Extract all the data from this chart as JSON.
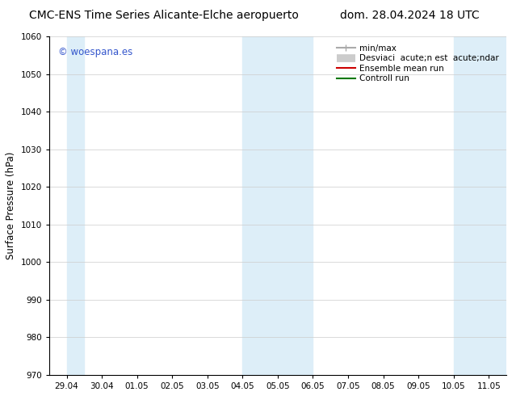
{
  "title_left": "CMC-ENS Time Series Alicante-Elche aeropuerto",
  "title_right": "dom. 28.04.2024 18 UTC",
  "ylabel": "Surface Pressure (hPa)",
  "ylim": [
    970,
    1060
  ],
  "yticks": [
    970,
    980,
    990,
    1000,
    1010,
    1020,
    1030,
    1040,
    1050,
    1060
  ],
  "xtick_labels": [
    "29.04",
    "30.04",
    "01.05",
    "02.05",
    "03.05",
    "04.05",
    "05.05",
    "06.05",
    "07.05",
    "08.05",
    "09.05",
    "10.05",
    "11.05"
  ],
  "num_xticks": 13,
  "shaded_bands": [
    {
      "xstart": 0,
      "xend": 0.5,
      "color": "#ddeef8"
    },
    {
      "xstart": 5,
      "xend": 7,
      "color": "#ddeef8"
    },
    {
      "xstart": 11,
      "xend": 13,
      "color": "#ddeef8"
    }
  ],
  "watermark_text": "© woespana.es",
  "watermark_color": "#3355cc",
  "legend_labels": [
    "min/max",
    "Desviaci  acute;n est  acute;ndar",
    "Ensemble mean run",
    "Controll run"
  ],
  "legend_colors": [
    "#aaaaaa",
    "#cccccc",
    "#cc0000",
    "#007700"
  ],
  "legend_lws": [
    1.5,
    8,
    1.5,
    1.5
  ],
  "background_color": "#ffffff",
  "shade_color": "#ddeef8",
  "title_fontsize": 10,
  "tick_fontsize": 7.5,
  "ylabel_fontsize": 8.5,
  "legend_fontsize": 7.5
}
